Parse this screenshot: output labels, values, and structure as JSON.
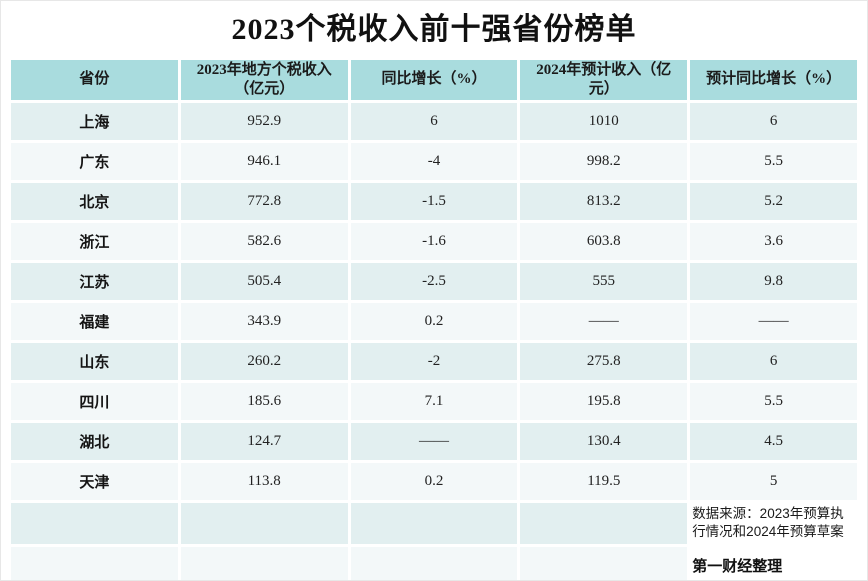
{
  "page": {
    "title": "2023个税收入前十强省份榜单"
  },
  "table": {
    "headers": [
      "省份",
      "2023年地方个税收入（亿元）",
      "同比增长（%）",
      "2024年预计收入（亿元）",
      "预计同比增长（%）"
    ],
    "rows": [
      [
        "上海",
        "952.9",
        "6",
        "1010",
        "6"
      ],
      [
        "广东",
        "946.1",
        "-4",
        "998.2",
        "5.5"
      ],
      [
        "北京",
        "772.8",
        "-1.5",
        "813.2",
        "5.2"
      ],
      [
        "浙江",
        "582.6",
        "-1.6",
        "603.8",
        "3.6"
      ],
      [
        "江苏",
        "505.4",
        "-2.5",
        "555",
        "9.8"
      ],
      [
        "福建",
        "343.9",
        "0.2",
        "——",
        "——"
      ],
      [
        "山东",
        "260.2",
        "-2",
        "275.8",
        "6"
      ],
      [
        "四川",
        "185.6",
        "7.1",
        "195.8",
        "5.5"
      ],
      [
        "湖北",
        "124.7",
        "——",
        "130.4",
        "4.5"
      ],
      [
        "天津",
        "113.8",
        "0.2",
        "119.5",
        "5"
      ]
    ]
  },
  "footer": {
    "source": "数据来源：2023年预算执行情况和2024年预算草案",
    "credit": "第一财经整理"
  },
  "colors": {
    "header_bg": "#a9dcde",
    "row_teal_bg": "#e2eff0",
    "row_pale_bg": "#f3f8f9",
    "title_color": "#111111",
    "text_color": "#222222"
  },
  "chart_data": {
    "type": "table",
    "title": "2023个税收入前十强省份榜单",
    "columns": [
      "省份",
      "2023年地方个税收入（亿元）",
      "同比增长（%）",
      "2024年预计收入（亿元）",
      "预计同比增长（%）"
    ],
    "provinces": [
      "上海",
      "广东",
      "北京",
      "浙江",
      "江苏",
      "福建",
      "山东",
      "四川",
      "湖北",
      "天津"
    ],
    "income_2023": [
      952.9,
      946.1,
      772.8,
      582.6,
      505.4,
      343.9,
      260.2,
      185.6,
      124.7,
      113.8
    ],
    "yoy_growth_pct": [
      6,
      -4,
      -1.5,
      -1.6,
      -2.5,
      0.2,
      -2,
      7.1,
      null,
      0.2
    ],
    "expected_income_2024": [
      1010,
      998.2,
      813.2,
      603.8,
      555,
      null,
      275.8,
      195.8,
      130.4,
      119.5
    ],
    "expected_yoy_growth_pct": [
      6,
      5.5,
      5.2,
      3.6,
      9.8,
      null,
      6,
      5.5,
      4.5,
      5
    ],
    "notes": "null values shown as —— in the table"
  }
}
